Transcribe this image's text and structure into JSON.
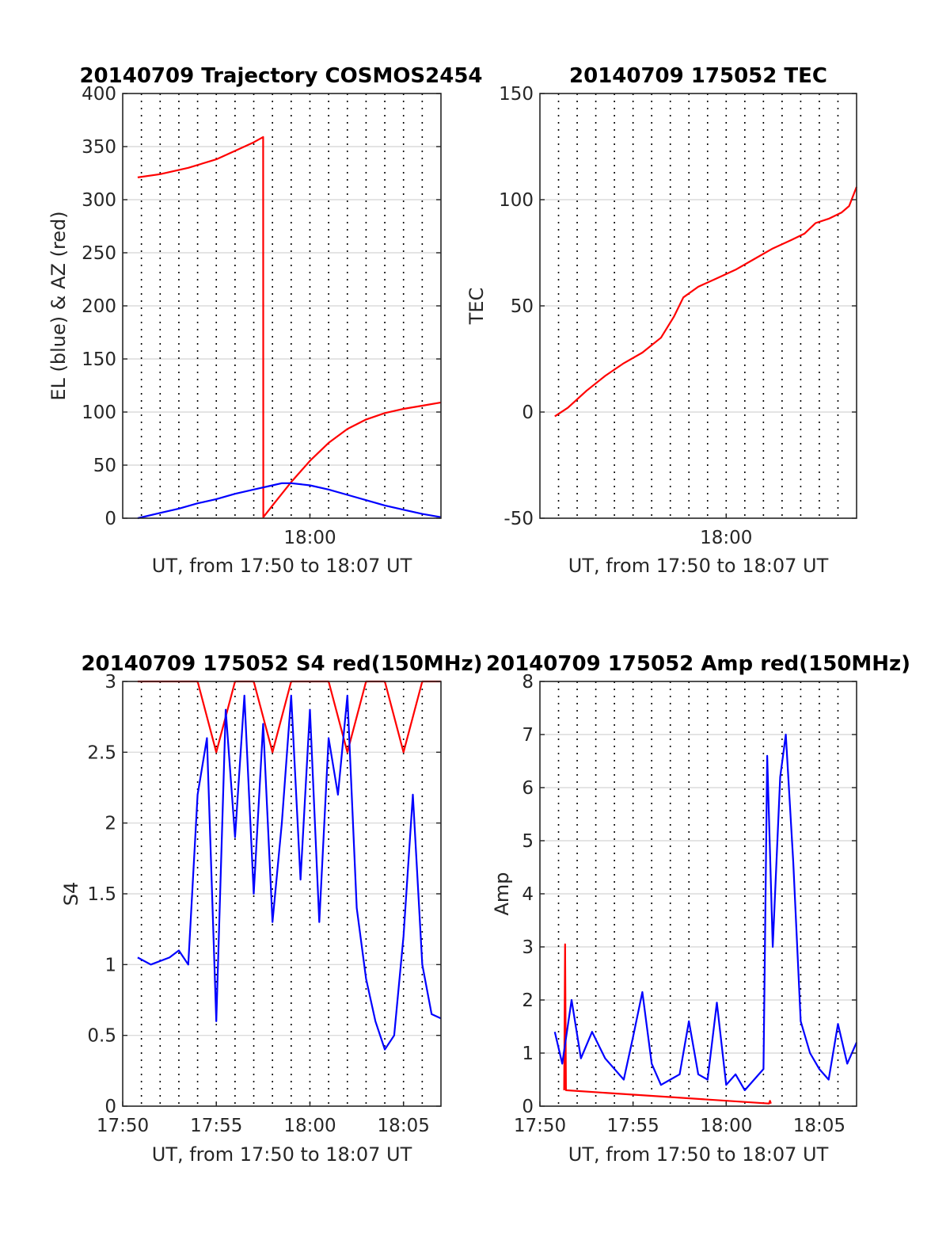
{
  "colors": {
    "red": "#ff0000",
    "blue": "#0000ff"
  },
  "chart_data": [
    {
      "type": "line",
      "title": "20140709 Trajectory COSMOS2454",
      "xlabel": "UT, from 17:50 to 18:07 UT",
      "ylabel": "EL (blue) & AZ (red)",
      "xlim": [
        0,
        17
      ],
      "ylim": [
        0,
        400
      ],
      "yticks": [
        0,
        50,
        100,
        150,
        200,
        250,
        300,
        350,
        400
      ],
      "xticks": [
        10
      ],
      "xticklabels": [
        "18:00"
      ],
      "grid": true,
      "series": [
        {
          "color": "red",
          "x": [
            0.8,
            2.0,
            3.5,
            5.0,
            6.0,
            7.0,
            7.5,
            7.51,
            8.0,
            9.0,
            10.0,
            11.0,
            12.0,
            13.0,
            14.0,
            15.0,
            16.0,
            17.0
          ],
          "values": [
            321,
            324,
            330,
            338,
            346,
            354,
            359,
            1,
            12,
            34,
            54,
            71,
            84,
            93,
            99,
            103,
            106,
            109
          ]
        },
        {
          "color": "blue",
          "x": [
            0.8,
            2.0,
            3.0,
            4.0,
            5.0,
            6.0,
            7.0,
            8.0,
            8.5,
            9.0,
            10.0,
            11.0,
            12.0,
            13.0,
            14.0,
            15.0,
            16.0,
            17.0
          ],
          "values": [
            0,
            5,
            9,
            14,
            18,
            23,
            27,
            31,
            33,
            33,
            31,
            27,
            22,
            17,
            12,
            8,
            4,
            1
          ]
        }
      ]
    },
    {
      "type": "line",
      "title": "20140709 175052 TEC",
      "xlabel": "UT, from 17:50 to 18:07 UT",
      "ylabel": "TEC",
      "xlim": [
        0,
        17
      ],
      "ylim": [
        -50,
        150
      ],
      "yticks": [
        -50,
        0,
        50,
        100,
        150
      ],
      "xticks": [
        10
      ],
      "xticklabels": [
        "18:00"
      ],
      "grid": true,
      "series": [
        {
          "color": "red",
          "x": [
            0.8,
            1.5,
            2.5,
            3.5,
            4.5,
            5.5,
            6.5,
            7.2,
            7.7,
            8.5,
            9.5,
            10.5,
            11.5,
            12.5,
            13.5,
            14.2,
            14.8,
            15.5,
            16.2,
            16.6,
            17.0
          ],
          "values": [
            -2,
            2,
            10,
            17,
            23,
            28,
            35,
            45,
            54,
            59,
            63,
            67,
            72,
            77,
            81,
            84,
            89,
            91,
            94,
            97,
            106
          ]
        }
      ]
    },
    {
      "type": "line",
      "title": "20140709 175052 S4 red(150MHz)",
      "xlabel": "UT, from 17:50 to 18:07 UT",
      "ylabel": "S4",
      "xlim": [
        0,
        17
      ],
      "ylim": [
        0,
        3
      ],
      "yticks": [
        0,
        0.5,
        1,
        1.5,
        2,
        2.5,
        3
      ],
      "xticks": [
        0,
        5,
        10,
        15
      ],
      "xticklabels": [
        "17:50",
        "17:55",
        "18:00",
        "18:05"
      ],
      "grid": true,
      "series": [
        {
          "color": "red",
          "x": [
            0.8,
            2.0,
            3.0,
            4.0,
            5.0,
            6.0,
            7.0,
            8.0,
            9.0,
            10.0,
            11.0,
            12.0,
            13.0,
            14.0,
            15.0,
            16.0,
            17.0
          ],
          "values": [
            3,
            3,
            3,
            3,
            2.5,
            3,
            3,
            2.5,
            3,
            3,
            3,
            2.5,
            3,
            3,
            2.5,
            3,
            3
          ]
        },
        {
          "color": "blue",
          "x": [
            0.8,
            1.5,
            2.5,
            3.0,
            3.5,
            4.0,
            4.5,
            5.0,
            5.5,
            6.0,
            6.5,
            7.0,
            7.5,
            8.0,
            8.5,
            9.0,
            9.5,
            10.0,
            10.5,
            11.0,
            11.5,
            12.0,
            12.5,
            13.0,
            13.5,
            14.0,
            14.5,
            15.0,
            15.5,
            16.0,
            16.5,
            17.0
          ],
          "values": [
            1.05,
            1.0,
            1.05,
            1.1,
            1.0,
            2.2,
            2.6,
            0.6,
            2.8,
            1.9,
            2.9,
            1.5,
            2.7,
            1.3,
            2.0,
            2.9,
            1.6,
            2.8,
            1.3,
            2.6,
            2.2,
            2.9,
            1.4,
            0.9,
            0.6,
            0.4,
            0.5,
            1.2,
            2.2,
            1.0,
            0.65,
            0.62
          ]
        }
      ]
    },
    {
      "type": "line",
      "title": "20140709 175052 Amp red(150MHz)",
      "xlabel": "UT, from 17:50 to 18:07 UT",
      "ylabel": "Amp",
      "xlim": [
        0,
        17
      ],
      "ylim": [
        0,
        8
      ],
      "yticks": [
        0,
        1,
        2,
        3,
        4,
        5,
        6,
        7,
        8
      ],
      "xticks": [
        0,
        5,
        10,
        15
      ],
      "xticklabels": [
        "17:50",
        "17:55",
        "18:00",
        "18:05"
      ],
      "grid": true,
      "series": [
        {
          "color": "red",
          "x": [
            1.3,
            1.35,
            1.4,
            12.3,
            12.35,
            12.4
          ],
          "values": [
            0.3,
            3.05,
            0.3,
            0.05,
            0.1,
            0.05
          ]
        },
        {
          "color": "blue",
          "x": [
            0.8,
            1.2,
            1.7,
            2.2,
            2.8,
            3.5,
            4.5,
            5.0,
            5.5,
            6.0,
            6.5,
            7.0,
            7.5,
            8.0,
            8.5,
            9.0,
            9.5,
            10.0,
            10.5,
            11.0,
            11.5,
            12.0,
            12.2,
            12.5,
            12.9,
            13.2,
            13.6,
            14.0,
            14.5,
            15.0,
            15.5,
            16.0,
            16.5,
            17.0
          ],
          "values": [
            1.4,
            0.8,
            2.0,
            0.9,
            1.4,
            0.9,
            0.5,
            1.3,
            2.15,
            0.8,
            0.4,
            0.5,
            0.6,
            1.6,
            0.6,
            0.5,
            1.95,
            0.4,
            0.6,
            0.3,
            0.5,
            0.7,
            6.6,
            3.0,
            6.2,
            7.0,
            4.6,
            1.6,
            1.0,
            0.7,
            0.5,
            1.55,
            0.8,
            1.2
          ]
        }
      ]
    }
  ]
}
